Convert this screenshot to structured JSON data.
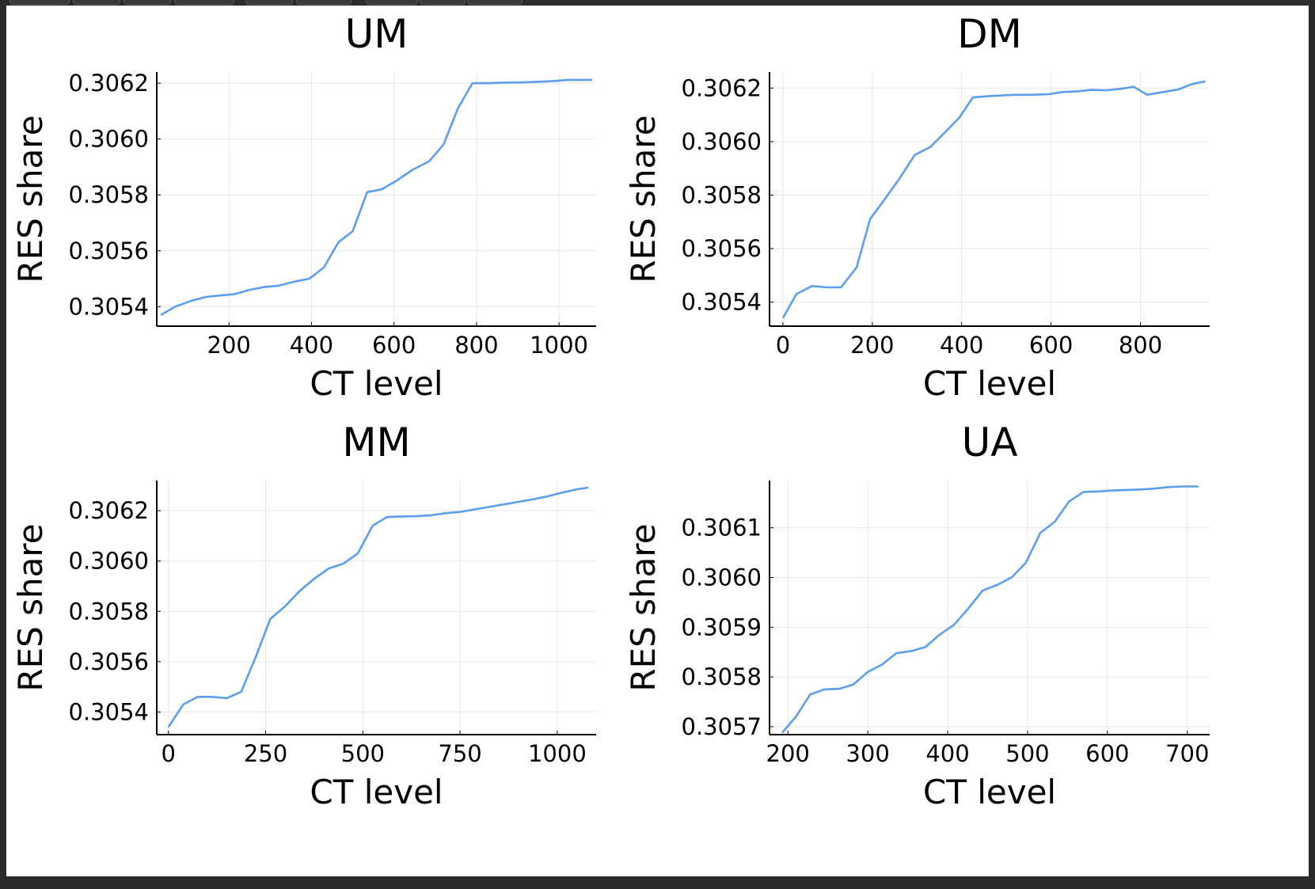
{
  "chart_data": [
    {
      "type": "line",
      "title": "UM",
      "xlabel": "CT level",
      "ylabel": "RES share",
      "xlim": [
        25,
        1090
      ],
      "ylim": [
        0.30533,
        0.30624
      ],
      "xticks": [
        200,
        400,
        600,
        800,
        1000
      ],
      "xtick_labels": [
        "200",
        "400",
        "600",
        "800",
        "1000"
      ],
      "yticks": [
        0.3054,
        0.3056,
        0.3058,
        0.306,
        0.3062
      ],
      "ytick_labels": [
        "0.3054",
        "0.3056",
        "0.3058",
        "0.3060",
        "0.3062"
      ],
      "grid": true,
      "legend": "none",
      "color": "#5b9ef0",
      "series": [
        {
          "name": "y1",
          "x": [
            35,
            70,
            107,
            145,
            180,
            215,
            250,
            285,
            320,
            360,
            395,
            430,
            465,
            500,
            535,
            570,
            605,
            645,
            685,
            720,
            755,
            790,
            830,
            870,
            910,
            950,
            990,
            1020,
            1050,
            1080
          ],
          "y": [
            0.30537,
            0.3054,
            0.30542,
            0.305435,
            0.30544,
            0.305445,
            0.30546,
            0.30547,
            0.305475,
            0.30549,
            0.3055,
            0.30554,
            0.30563,
            0.30567,
            0.30581,
            0.30582,
            0.30585,
            0.30589,
            0.30592,
            0.30598,
            0.30611,
            0.3062,
            0.3062,
            0.306202,
            0.306203,
            0.306205,
            0.306208,
            0.306212,
            0.306212,
            0.306212
          ]
        }
      ]
    },
    {
      "type": "line",
      "title": "DM",
      "xlabel": "CT level",
      "ylabel": "RES share",
      "xlim": [
        -30,
        955
      ],
      "ylim": [
        0.30531,
        0.30626
      ],
      "xticks": [
        0,
        200,
        400,
        600,
        800
      ],
      "xtick_labels": [
        "0",
        "200",
        "400",
        "600",
        "800"
      ],
      "yticks": [
        0.3054,
        0.3056,
        0.3058,
        0.306,
        0.3062
      ],
      "ytick_labels": [
        "0.3054",
        "0.3056",
        "0.3058",
        "0.3060",
        "0.3062"
      ],
      "grid": true,
      "legend": "none",
      "color": "#5b9ef0",
      "series": [
        {
          "name": "y1",
          "x": [
            0,
            30,
            65,
            100,
            130,
            165,
            195,
            230,
            260,
            295,
            330,
            360,
            395,
            425,
            460,
            495,
            525,
            560,
            595,
            625,
            660,
            690,
            725,
            755,
            785,
            815,
            850,
            885,
            915,
            945
          ],
          "y": [
            0.30534,
            0.30543,
            0.30546,
            0.305455,
            0.305455,
            0.30553,
            0.30571,
            0.30579,
            0.30586,
            0.30595,
            0.30598,
            0.30603,
            0.30609,
            0.306165,
            0.30617,
            0.306173,
            0.306175,
            0.306175,
            0.306177,
            0.306185,
            0.306188,
            0.306193,
            0.306192,
            0.306197,
            0.306205,
            0.306175,
            0.306185,
            0.306195,
            0.306215,
            0.306225
          ]
        }
      ]
    },
    {
      "type": "line",
      "title": "MM",
      "xlabel": "CT level",
      "ylabel": "RES share",
      "xlim": [
        -30,
        1100
      ],
      "ylim": [
        0.30531,
        0.30632
      ],
      "xticks": [
        0,
        250,
        500,
        750,
        1000
      ],
      "xtick_labels": [
        "0",
        "250",
        "500",
        "750",
        "1000"
      ],
      "yticks": [
        0.3054,
        0.3056,
        0.3058,
        0.306,
        0.3062
      ],
      "ytick_labels": [
        "0.3054",
        "0.3056",
        "0.3058",
        "0.3060",
        "0.3062"
      ],
      "grid": true,
      "legend": "none",
      "color": "#5b9ef0",
      "series": [
        {
          "name": "y1",
          "x": [
            0,
            38,
            75,
            112,
            150,
            187,
            225,
            262,
            300,
            337,
            375,
            412,
            450,
            487,
            525,
            562,
            600,
            637,
            675,
            712,
            750,
            787,
            825,
            862,
            900,
            937,
            975,
            1012,
            1050,
            1080
          ],
          "y": [
            0.30534,
            0.30543,
            0.30546,
            0.30546,
            0.305455,
            0.30548,
            0.30562,
            0.30577,
            0.30582,
            0.30588,
            0.30593,
            0.30597,
            0.30599,
            0.30603,
            0.30614,
            0.306175,
            0.306177,
            0.306178,
            0.306182,
            0.30619,
            0.306195,
            0.306205,
            0.306215,
            0.306225,
            0.306235,
            0.306245,
            0.306257,
            0.306272,
            0.306285,
            0.306292
          ]
        }
      ]
    },
    {
      "type": "line",
      "title": "UA",
      "xlabel": "CT level",
      "ylabel": "RES share",
      "xlim": [
        177,
        728
      ],
      "ylim": [
        0.305684,
        0.306195
      ],
      "xticks": [
        200,
        300,
        400,
        500,
        600,
        700
      ],
      "xtick_labels": [
        "200",
        "300",
        "400",
        "500",
        "600",
        "700"
      ],
      "yticks": [
        0.3057,
        0.3058,
        0.3059,
        0.306,
        0.3061
      ],
      "ytick_labels": [
        "0.3057",
        "0.3058",
        "0.3059",
        "0.3060",
        "0.3061"
      ],
      "grid": true,
      "legend": "none",
      "color": "#5b9ef0",
      "series": [
        {
          "name": "y1",
          "x": [
            193,
            210,
            228,
            246,
            264,
            282,
            300,
            318,
            336,
            354,
            372,
            390,
            408,
            426,
            444,
            462,
            480,
            498,
            516,
            534,
            552,
            570,
            588,
            606,
            624,
            642,
            660,
            678,
            696,
            714
          ],
          "y": [
            0.305688,
            0.30572,
            0.305765,
            0.305775,
            0.305776,
            0.305785,
            0.30581,
            0.305825,
            0.305848,
            0.305852,
            0.30586,
            0.305885,
            0.305905,
            0.305938,
            0.305974,
            0.305985,
            0.306,
            0.30603,
            0.30609,
            0.306112,
            0.306153,
            0.306172,
            0.306173,
            0.306175,
            0.306176,
            0.306177,
            0.306179,
            0.306182,
            0.306183,
            0.306183
          ]
        }
      ]
    }
  ]
}
